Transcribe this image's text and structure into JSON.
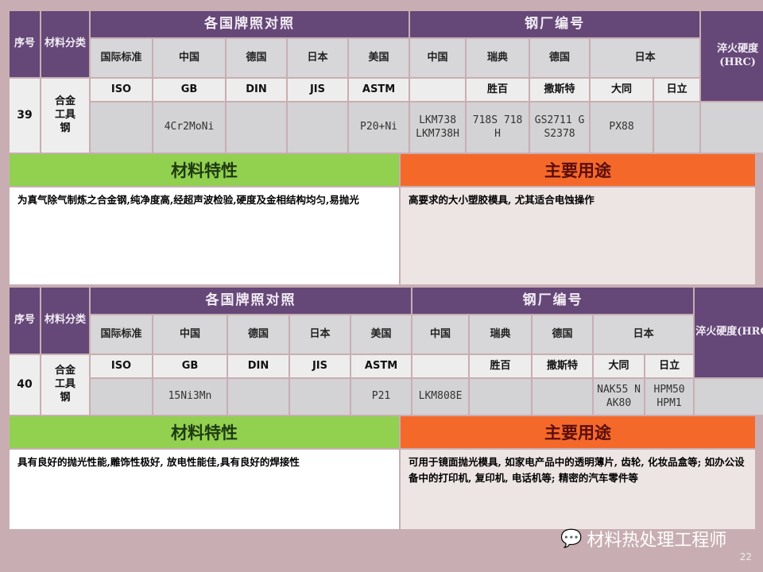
{
  "headers": {
    "seq": "序号",
    "category": "材料分类",
    "grade_group": "各国牌照对照",
    "mill_group": "钢厂编号",
    "hardness": "淬火硬度(HRC)",
    "grade_cols": [
      "国际标准",
      "中国",
      "德国",
      "日本",
      "美国"
    ],
    "mill_cols": [
      "中国",
      "瑞典",
      "德国",
      "日本"
    ],
    "standards": [
      "ISO",
      "GB",
      "DIN",
      "JIS",
      "ASTM"
    ],
    "mills": [
      "",
      "胜百",
      "撒斯特",
      "大同",
      "日立"
    ],
    "properties": "材料特性",
    "uses": "主要用途"
  },
  "entries": [
    {
      "seq": "39",
      "category": "合金工具钢",
      "grades": [
        "",
        "4Cr2MoNi",
        "",
        "",
        "P20+Ni"
      ],
      "mills": [
        "LKM738 LKM738H",
        "718S 718H",
        "GS2711 GS2378",
        "PX88",
        ""
      ],
      "hardness": "",
      "properties": "为真气除气制炼之合金钢,纯净度高,经超声波检验,硬度及金相结构均匀,易抛光",
      "uses": "高要求的大小塑胶模具, 尤其适合电蚀操作"
    },
    {
      "seq": "40",
      "category": "合金工具钢",
      "grades": [
        "",
        "15Ni3Mn",
        "",
        "",
        "P21"
      ],
      "mills": [
        "LKM808E",
        "",
        "",
        "NAK55 NAK80",
        "HPM50 HPM1"
      ],
      "hardness": "",
      "properties": "具有良好的抛光性能,雕饰性极好, 放电性能佳,具有良好的焊接性",
      "uses": "可用于镜面抛光模具, 如家电产品中的透明薄片, 齿轮, 化妆品盒等; 如办公设备中的打印机, 复印机, 电话机等; 精密的汽车零件等"
    }
  ],
  "watermark": "材料热处理工程师",
  "page_number": "22",
  "colors": {
    "purple": "#654878",
    "green": "#92d050",
    "orange": "#f4692a",
    "background": "#c8aeb2"
  }
}
